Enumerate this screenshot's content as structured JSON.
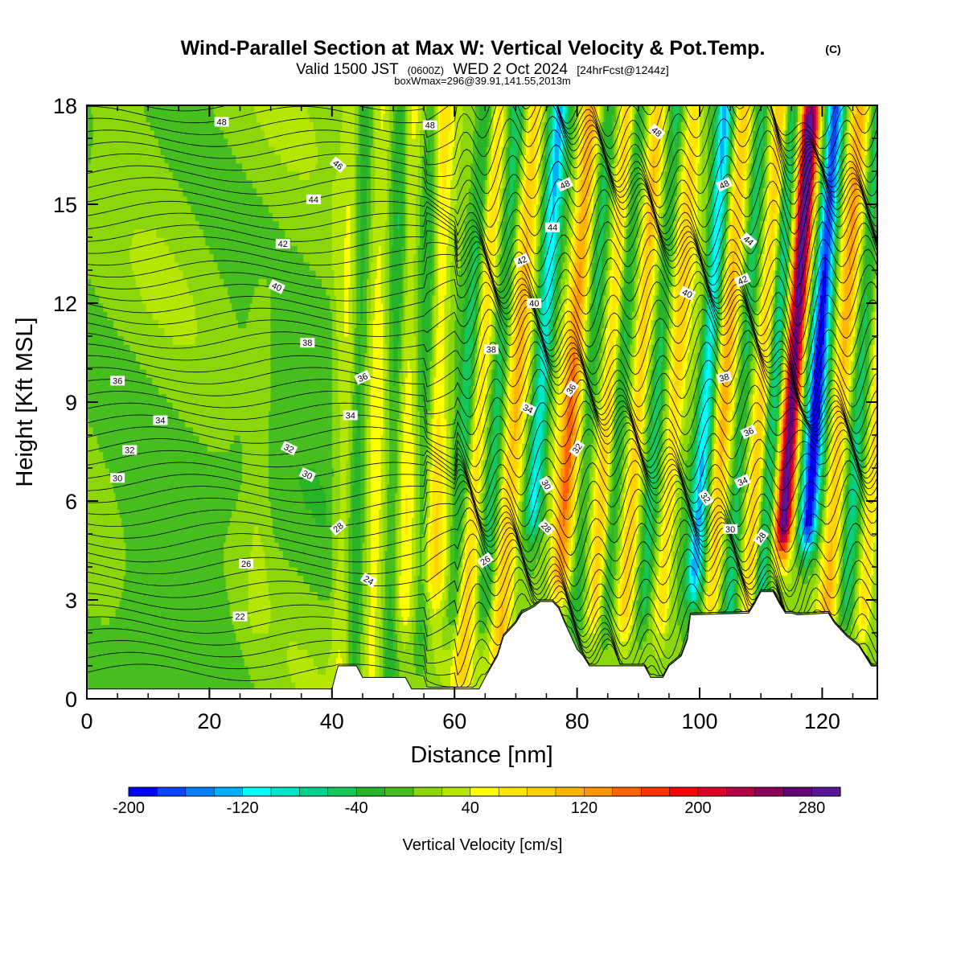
{
  "header": {
    "title": "Wind-Parallel Section at Max W: Vertical Velocity & Pot.Temp.",
    "title_mark": "(C)",
    "valid_prefix": "Valid 1500 JST",
    "valid_utc": "(0600Z)",
    "valid_date": "WED 2 Oct 2024",
    "valid_fcst": "[24hrFcst@1244z]",
    "box_info": "boxWmax=296@39.91,141.55,2013m"
  },
  "chart_data": {
    "type": "heatmap",
    "xlabel": "Distance [nm]",
    "ylabel": "Height [Kft MSL]",
    "xlim": [
      0,
      129
    ],
    "ylim": [
      0,
      18
    ],
    "x_ticks": [
      0,
      20,
      40,
      60,
      80,
      100,
      120
    ],
    "y_ticks": [
      0,
      3,
      6,
      9,
      12,
      15,
      18
    ],
    "grid": false,
    "colorbar": {
      "label": "Vertical Velocity [cm/s]",
      "tick_labels": [
        "-200",
        "-120",
        "-40",
        "40",
        "120",
        "200",
        "280"
      ],
      "tick_values": [
        -200,
        -120,
        -40,
        40,
        120,
        200,
        280
      ],
      "bounds": [
        -200,
        300
      ],
      "step": 20,
      "colors": [
        "#0000ff",
        "#0a46ff",
        "#0080ff",
        "#00b0ff",
        "#00ffff",
        "#00e6c8",
        "#00d28c",
        "#14c85a",
        "#28b428",
        "#46be1e",
        "#8cd70a",
        "#b4e600",
        "#ffff00",
        "#ffe600",
        "#ffd200",
        "#ffb400",
        "#ff9600",
        "#ff6400",
        "#ff3200",
        "#ff0000",
        "#dc0028",
        "#b40046",
        "#8c005a",
        "#640078",
        "#5a1496"
      ]
    },
    "terrain_kft": [
      [
        0,
        0.3
      ],
      [
        40,
        0.3
      ],
      [
        41,
        1.0
      ],
      [
        44,
        1.0
      ],
      [
        45,
        0.65
      ],
      [
        52,
        0.65
      ],
      [
        53,
        0.3
      ],
      [
        64,
        0.3
      ],
      [
        65,
        0.65
      ],
      [
        67,
        1.3
      ],
      [
        68,
        1.9
      ],
      [
        70,
        2.3
      ],
      [
        71,
        2.6
      ],
      [
        73,
        2.8
      ],
      [
        74,
        2.95
      ],
      [
        76,
        2.95
      ],
      [
        77,
        2.75
      ],
      [
        78,
        2.3
      ],
      [
        79,
        1.9
      ],
      [
        80,
        1.5
      ],
      [
        81,
        1.3
      ],
      [
        82,
        1.0
      ],
      [
        91,
        1.0
      ],
      [
        92,
        0.65
      ],
      [
        94,
        0.65
      ],
      [
        95,
        1.0
      ],
      [
        97,
        1.3
      ],
      [
        98,
        1.8
      ],
      [
        98.5,
        2.55
      ],
      [
        108,
        2.6
      ],
      [
        109,
        2.9
      ],
      [
        110,
        3.25
      ],
      [
        112,
        3.25
      ],
      [
        113,
        2.9
      ],
      [
        114,
        2.6
      ],
      [
        115,
        2.6
      ],
      [
        116,
        2.55
      ],
      [
        121,
        2.6
      ],
      [
        122,
        2.3
      ],
      [
        124,
        1.9
      ],
      [
        126,
        1.6
      ],
      [
        127,
        1.3
      ],
      [
        128,
        1.0
      ],
      [
        129,
        1.0
      ]
    ],
    "updraft_bands": [
      {
        "x": 28,
        "amp": 20,
        "width": 2.0,
        "z0": 3,
        "z1": 12
      },
      {
        "x": 42,
        "amp": 30,
        "width": 1.5,
        "z0": 1,
        "z1": 18
      },
      {
        "x": 47,
        "amp": 40,
        "width": 1.5,
        "z0": 1,
        "z1": 18
      },
      {
        "x": 52,
        "amp": 40,
        "width": 1.5,
        "z0": 3,
        "z1": 18
      },
      {
        "x": 57,
        "amp": 60,
        "width": 1.8,
        "z0": 4,
        "z1": 18
      },
      {
        "x": 63,
        "amp": 70,
        "width": 1.5,
        "z0": 1,
        "z1": 18
      },
      {
        "x": 69,
        "amp": 90,
        "width": 1.6,
        "z0": 2,
        "z1": 18
      },
      {
        "x": 78,
        "amp": 120,
        "width": 1.6,
        "z0": 4,
        "z1": 18
      },
      {
        "x": 84,
        "amp": 70,
        "width": 1.2,
        "z0": 3,
        "z1": 18
      },
      {
        "x": 89,
        "amp": 80,
        "width": 1.2,
        "z0": 3,
        "z1": 18
      },
      {
        "x": 95,
        "amp": 70,
        "width": 1.3,
        "z0": 3,
        "z1": 18
      },
      {
        "x": 103,
        "amp": 90,
        "width": 1.4,
        "z0": 3,
        "z1": 18
      },
      {
        "x": 109,
        "amp": 80,
        "width": 1.3,
        "z0": 3,
        "z1": 18
      },
      {
        "x": 114,
        "amp": 280,
        "width": 1.4,
        "z0": 5.5,
        "z1": 17.5
      },
      {
        "x": 122,
        "amp": 100,
        "width": 1.5,
        "z0": 3,
        "z1": 18
      },
      {
        "x": 128,
        "amp": 80,
        "width": 1.2,
        "z0": 3,
        "z1": 18
      }
    ],
    "downdraft_bands": [
      {
        "x": 44,
        "amp": -40,
        "width": 1.3,
        "z0": 1,
        "z1": 18
      },
      {
        "x": 50,
        "amp": -40,
        "width": 1.3,
        "z0": 1,
        "z1": 18
      },
      {
        "x": 55,
        "amp": -45,
        "width": 1.3,
        "z0": 2,
        "z1": 18
      },
      {
        "x": 61,
        "amp": -60,
        "width": 1.5,
        "z0": 3,
        "z1": 18
      },
      {
        "x": 66,
        "amp": -60,
        "width": 1.3,
        "z0": 3,
        "z1": 18
      },
      {
        "x": 73,
        "amp": -120,
        "width": 1.5,
        "z0": 6,
        "z1": 18
      },
      {
        "x": 81,
        "amp": -50,
        "width": 1.2,
        "z0": 3,
        "z1": 18
      },
      {
        "x": 86,
        "amp": -50,
        "width": 1.1,
        "z0": 3,
        "z1": 18
      },
      {
        "x": 92,
        "amp": -60,
        "width": 1.1,
        "z0": 3,
        "z1": 18
      },
      {
        "x": 100,
        "amp": -130,
        "width": 1.4,
        "z0": 4,
        "z1": 18
      },
      {
        "x": 106,
        "amp": -60,
        "width": 1.1,
        "z0": 3,
        "z1": 18
      },
      {
        "x": 111,
        "amp": -80,
        "width": 1.2,
        "z0": 3,
        "z1": 18
      },
      {
        "x": 118,
        "amp": -200,
        "width": 1.5,
        "z0": 5.5,
        "z1": 18
      },
      {
        "x": 125,
        "amp": -60,
        "width": 1.2,
        "z0": 3,
        "z1": 18
      }
    ],
    "theta_levels": [
      22,
      24,
      26,
      28,
      30,
      32,
      34,
      36,
      38,
      40,
      42,
      44,
      46,
      48
    ],
    "theta_labels": [
      {
        "text": "48",
        "x": 22,
        "z": 17.5,
        "rot": 0
      },
      {
        "text": "48",
        "x": 56,
        "z": 17.4,
        "rot": 0
      },
      {
        "text": "48",
        "x": 93,
        "z": 17.2,
        "rot": 40
      },
      {
        "text": "46",
        "x": 41,
        "z": 16.2,
        "rot": 40
      },
      {
        "text": "48",
        "x": 78,
        "z": 15.6,
        "rot": -25
      },
      {
        "text": "48",
        "x": 104,
        "z": 15.6,
        "rot": -25
      },
      {
        "text": "44",
        "x": 37,
        "z": 15.15,
        "rot": 0
      },
      {
        "text": "44",
        "x": 76,
        "z": 14.3,
        "rot": 0
      },
      {
        "text": "44",
        "x": 108,
        "z": 13.9,
        "rot": 40
      },
      {
        "text": "42",
        "x": 32,
        "z": 13.8,
        "rot": 0
      },
      {
        "text": "42",
        "x": 71,
        "z": 13.3,
        "rot": -25
      },
      {
        "text": "42",
        "x": 107,
        "z": 12.7,
        "rot": -25
      },
      {
        "text": "40",
        "x": 31,
        "z": 12.5,
        "rot": 25
      },
      {
        "text": "40",
        "x": 73,
        "z": 12.0,
        "rot": 0
      },
      {
        "text": "40",
        "x": 98,
        "z": 12.3,
        "rot": 25
      },
      {
        "text": "38",
        "x": 36,
        "z": 10.8,
        "rot": 0
      },
      {
        "text": "38",
        "x": 66,
        "z": 10.6,
        "rot": 0
      },
      {
        "text": "36",
        "x": 5,
        "z": 9.65,
        "rot": 0
      },
      {
        "text": "36",
        "x": 45,
        "z": 9.75,
        "rot": -25
      },
      {
        "text": "36",
        "x": 79,
        "z": 9.4,
        "rot": -55
      },
      {
        "text": "38",
        "x": 104,
        "z": 9.75,
        "rot": -15
      },
      {
        "text": "34",
        "x": 12,
        "z": 8.45,
        "rot": 0
      },
      {
        "text": "34",
        "x": 43,
        "z": 8.6,
        "rot": 0
      },
      {
        "text": "34",
        "x": 72,
        "z": 8.8,
        "rot": 25
      },
      {
        "text": "36",
        "x": 108,
        "z": 8.1,
        "rot": -25
      },
      {
        "text": "32",
        "x": 7,
        "z": 7.55,
        "rot": 0
      },
      {
        "text": "32",
        "x": 33,
        "z": 7.6,
        "rot": 25
      },
      {
        "text": "32",
        "x": 80,
        "z": 7.6,
        "rot": -55
      },
      {
        "text": "34",
        "x": 107,
        "z": 6.6,
        "rot": -25
      },
      {
        "text": "30",
        "x": 5,
        "z": 6.7,
        "rot": 0
      },
      {
        "text": "30",
        "x": 36,
        "z": 6.8,
        "rot": 25
      },
      {
        "text": "30",
        "x": 75,
        "z": 6.5,
        "rot": 60
      },
      {
        "text": "32",
        "x": 101,
        "z": 6.1,
        "rot": 55
      },
      {
        "text": "28",
        "x": 41,
        "z": 5.2,
        "rot": -40
      },
      {
        "text": "28",
        "x": 75,
        "z": 5.2,
        "rot": 45
      },
      {
        "text": "30",
        "x": 105,
        "z": 5.15,
        "rot": 0
      },
      {
        "text": "28",
        "x": 110,
        "z": 4.9,
        "rot": -55
      },
      {
        "text": "26",
        "x": 26,
        "z": 4.1,
        "rot": 0
      },
      {
        "text": "26",
        "x": 65,
        "z": 4.2,
        "rot": -35
      },
      {
        "text": "24",
        "x": 46,
        "z": 3.6,
        "rot": 30
      },
      {
        "text": "22",
        "x": 25,
        "z": 2.5,
        "rot": 0
      }
    ]
  }
}
